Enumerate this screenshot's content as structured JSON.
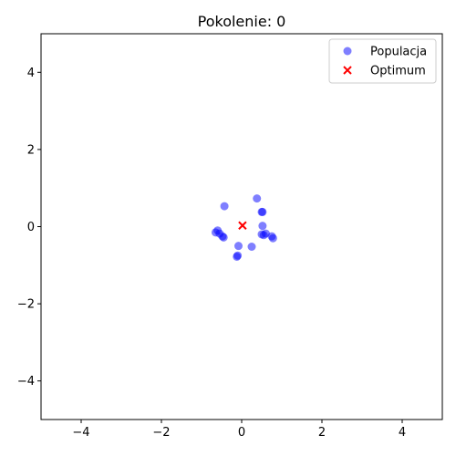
{
  "chart_data": {
    "type": "scatter",
    "title": "Pokolenie: 0",
    "xlabel": "",
    "ylabel": "",
    "xlim": [
      -5,
      5
    ],
    "ylim": [
      -5,
      5
    ],
    "xticks": [
      -4,
      -2,
      0,
      2,
      4
    ],
    "yticks": [
      -4,
      -2,
      0,
      2,
      4
    ],
    "grid": false,
    "legend_position": "top-right",
    "series": [
      {
        "name": "Populacja",
        "marker": "circle",
        "color": "#0000ff",
        "alpha": 0.5,
        "points": [
          [
            -0.43,
            0.53
          ],
          [
            0.38,
            0.73
          ],
          [
            0.5,
            0.38
          ],
          [
            0.52,
            0.38
          ],
          [
            -0.6,
            -0.1
          ],
          [
            -0.65,
            -0.15
          ],
          [
            -0.55,
            -0.18
          ],
          [
            -0.48,
            -0.25
          ],
          [
            -0.45,
            -0.28
          ],
          [
            0.52,
            0.02
          ],
          [
            0.5,
            -0.2
          ],
          [
            0.55,
            -0.22
          ],
          [
            0.6,
            -0.18
          ],
          [
            0.75,
            -0.25
          ],
          [
            0.78,
            -0.3
          ],
          [
            -0.08,
            -0.5
          ],
          [
            0.25,
            -0.52
          ],
          [
            -0.1,
            -0.75
          ],
          [
            -0.12,
            -0.78
          ]
        ]
      },
      {
        "name": "Optimum",
        "marker": "x",
        "color": "#ff0000",
        "points": [
          [
            0.02,
            0.03
          ]
        ]
      }
    ]
  }
}
